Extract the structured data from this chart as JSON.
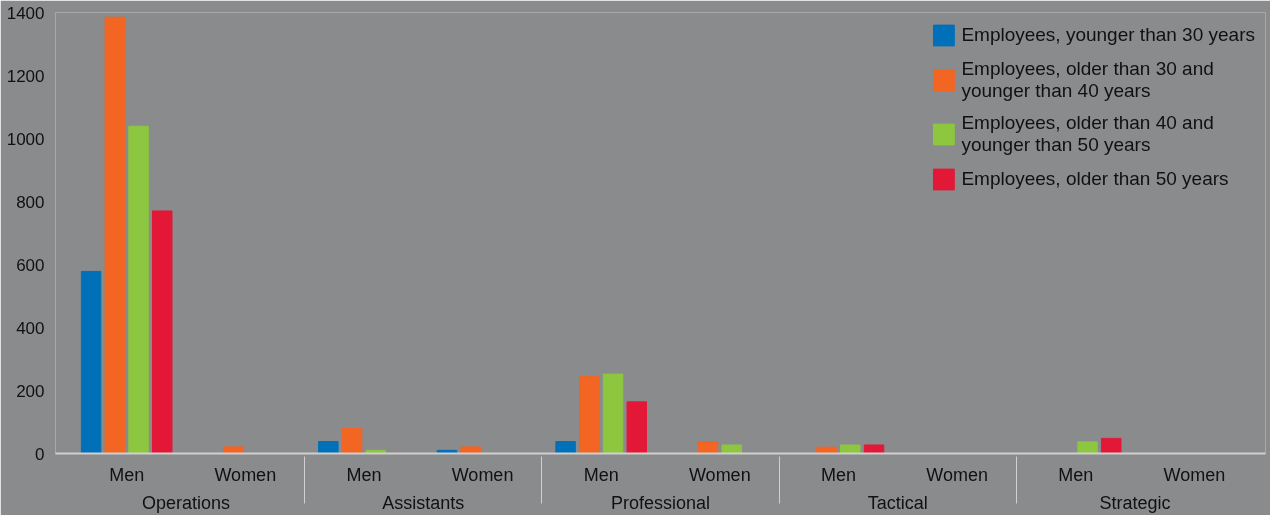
{
  "chart_data": {
    "type": "bar",
    "categories": [
      "Men",
      "Women",
      "Men",
      "Women",
      "Men",
      "Women",
      "Men",
      "Women",
      "Men",
      "Women"
    ],
    "annotations": [
      "Operations",
      "Assistants",
      "Professional",
      "Tactical",
      "Strategic"
    ],
    "series": [
      {
        "name": "Employees, younger than 30 years",
        "color": "#0070b8",
        "values": [
          578,
          null,
          38,
          10,
          38,
          null,
          null,
          null,
          null,
          null
        ]
      },
      {
        "name": "Employees, older than 30 and younger than 40 years",
        "color": "#f26522",
        "values": [
          1385,
          21,
          80,
          21,
          244,
          38,
          20,
          null,
          null,
          null
        ]
      },
      {
        "name": "Employees, older than 40 and younger than 50 years",
        "color": "#8dc63f",
        "values": [
          1039,
          null,
          10,
          null,
          252,
          27,
          27,
          null,
          37,
          null
        ]
      },
      {
        "name": "Employees, older than 50 years",
        "color": "#e31837",
        "values": [
          770,
          null,
          null,
          null,
          164,
          null,
          27,
          null,
          48,
          null
        ]
      }
    ],
    "ylim": [
      0,
      1400
    ],
    "yticks": [
      0,
      200,
      400,
      600,
      800,
      1000,
      1200,
      1400
    ],
    "grid": false,
    "legend": "top right"
  }
}
